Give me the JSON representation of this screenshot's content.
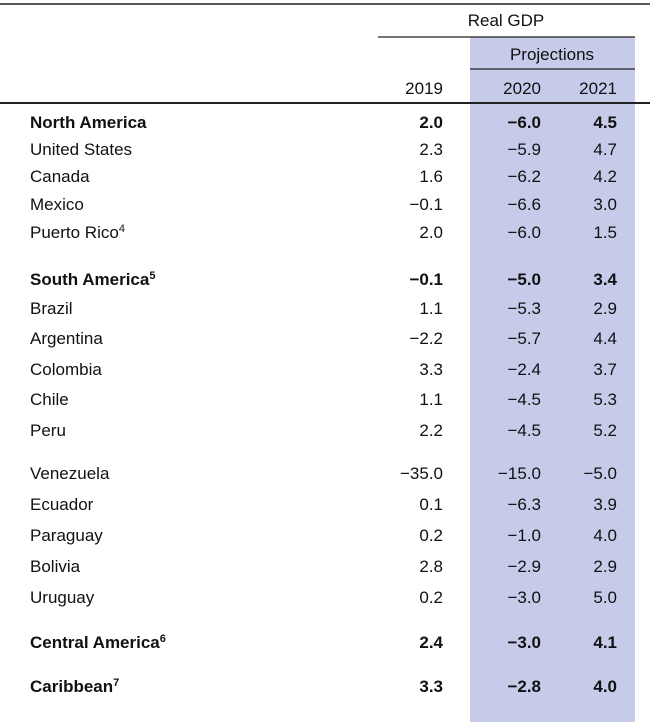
{
  "header": {
    "group": "Real GDP",
    "projections": "Projections",
    "years": [
      "2019",
      "2020",
      "2021"
    ]
  },
  "rows": [
    {
      "name": "North America",
      "bold": true,
      "values": [
        "2.0",
        "−6.0",
        "4.5"
      ]
    },
    {
      "name": "United States",
      "bold": false,
      "values": [
        "2.3",
        "−5.9",
        "4.7"
      ]
    },
    {
      "name": "Canada",
      "bold": false,
      "values": [
        "1.6",
        "−6.2",
        "4.2"
      ]
    },
    {
      "name": "Mexico",
      "bold": false,
      "values": [
        "−0.1",
        "−6.6",
        "3.0"
      ]
    },
    {
      "name": "Puerto Rico",
      "note": "4",
      "bold": false,
      "values": [
        "2.0",
        "−6.0",
        "1.5"
      ]
    },
    {
      "name": "South America",
      "note": "5",
      "bold": true,
      "values": [
        "−0.1",
        "−5.0",
        "3.4"
      ]
    },
    {
      "name": "Brazil",
      "bold": false,
      "values": [
        "1.1",
        "−5.3",
        "2.9"
      ]
    },
    {
      "name": "Argentina",
      "bold": false,
      "values": [
        "−2.2",
        "−5.7",
        "4.4"
      ]
    },
    {
      "name": "Colombia",
      "bold": false,
      "values": [
        "3.3",
        "−2.4",
        "3.7"
      ]
    },
    {
      "name": "Chile",
      "bold": false,
      "values": [
        "1.1",
        "−4.5",
        "5.3"
      ]
    },
    {
      "name": "Peru",
      "bold": false,
      "values": [
        "2.2",
        "−4.5",
        "5.2"
      ]
    },
    {
      "name": "Venezuela",
      "bold": false,
      "values": [
        "−35.0",
        "−15.0",
        "−5.0"
      ]
    },
    {
      "name": "Ecuador",
      "bold": false,
      "values": [
        "0.1",
        "−6.3",
        "3.9"
      ]
    },
    {
      "name": "Paraguay",
      "bold": false,
      "values": [
        "0.2",
        "−1.0",
        "4.0"
      ]
    },
    {
      "name": "Bolivia",
      "bold": false,
      "values": [
        "2.8",
        "−2.9",
        "2.9"
      ]
    },
    {
      "name": "Uruguay",
      "bold": false,
      "values": [
        "0.2",
        "−3.0",
        "5.0"
      ]
    },
    {
      "name": "Central America",
      "note": "6",
      "bold": true,
      "values": [
        "2.4",
        "−3.0",
        "4.1"
      ]
    },
    {
      "name": "Caribbean",
      "note": "7",
      "bold": true,
      "values": [
        "3.3",
        "−2.8",
        "4.0"
      ]
    }
  ]
}
